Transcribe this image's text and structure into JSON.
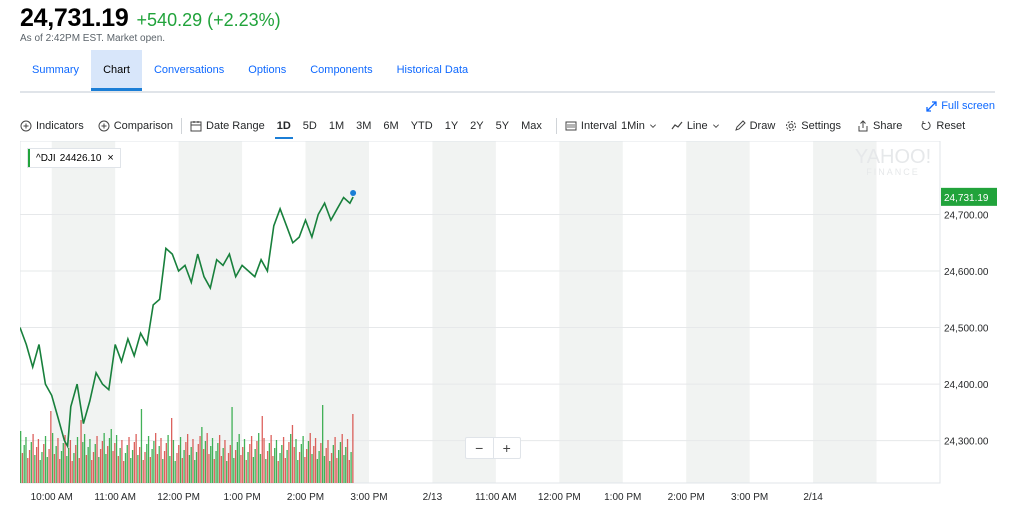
{
  "quote": {
    "price": "24,731.19",
    "change": "+540.29 (+2.23%)",
    "as_of": "As of 2:42PM EST. Market open."
  },
  "tabs": [
    {
      "label": "Summary"
    },
    {
      "label": "Chart"
    },
    {
      "label": "Conversations"
    },
    {
      "label": "Options"
    },
    {
      "label": "Components"
    },
    {
      "label": "Historical Data"
    }
  ],
  "fullscreen_label": "Full screen",
  "toolbar": {
    "indicators": "Indicators",
    "comparison": "Comparison",
    "date_range": "Date Range",
    "ranges": [
      "1D",
      "5D",
      "1M",
      "3M",
      "6M",
      "YTD",
      "1Y",
      "2Y",
      "5Y",
      "Max"
    ],
    "active_range": "1D",
    "interval_label": "Interval",
    "interval_value": "1Min",
    "line_label": "Line",
    "draw": "Draw",
    "settings": "Settings",
    "share": "Share",
    "reset": "Reset"
  },
  "legend": {
    "symbol": "^DJI",
    "value": "24426.10"
  },
  "watermark": {
    "line1": "YAHOO!",
    "line2": "FINANCE"
  },
  "colors": {
    "line": "#18803c",
    "up": "#21a33b",
    "down": "#d64541",
    "accent": "#0f69ff",
    "band": "#f1f3f2"
  },
  "chart_data": {
    "type": "line",
    "title": "",
    "current_price_label": "24,731.19",
    "current_price": 24731.19,
    "y_ticks": [
      24300,
      24400,
      24500,
      24600,
      24700
    ],
    "y_tick_labels": [
      "24,300.00",
      "24,400.00",
      "24,500.00",
      "24,600.00",
      "24,700.00"
    ],
    "ylim": [
      24225,
      24830
    ],
    "x_tick_labels": [
      "10:00 AM",
      "11:00 AM",
      "12:00 PM",
      "1:00 PM",
      "2:00 PM",
      "3:00 PM",
      "2/13",
      "11:00 AM",
      "12:00 PM",
      "1:00 PM",
      "2:00 PM",
      "3:00 PM",
      "2/14"
    ],
    "x_ticks_hours": [
      0.5,
      1.5,
      2.5,
      3.5,
      4.5,
      5.5,
      6.5,
      7.5,
      8.5,
      9.5,
      10.5,
      11.5,
      12.5
    ],
    "xlim_hours": [
      0,
      14.5
    ],
    "series": [
      {
        "x_hours": [
          0.0,
          0.1,
          0.2,
          0.3,
          0.4,
          0.5,
          0.6,
          0.7,
          0.75,
          0.8,
          0.9,
          1.0,
          1.1,
          1.2,
          1.3,
          1.4,
          1.5,
          1.6,
          1.7,
          1.8,
          1.9,
          2.0,
          2.1,
          2.2,
          2.3,
          2.4,
          2.5,
          2.6,
          2.7,
          2.8,
          2.9,
          3.0,
          3.1,
          3.2,
          3.3,
          3.4,
          3.5,
          3.6,
          3.7,
          3.8,
          3.9,
          4.0,
          4.1,
          4.2,
          4.3,
          4.4,
          4.5,
          4.6,
          4.7,
          4.8,
          4.9,
          5.0,
          5.1,
          5.2,
          5.25
        ],
        "values": [
          24500,
          24470,
          24430,
          24470,
          24400,
          24380,
          24340,
          24300,
          24290,
          24360,
          24400,
          24330,
          24370,
          24420,
          24400,
          24390,
          24470,
          24440,
          24480,
          24450,
          24490,
          24470,
          24540,
          24550,
          24640,
          24630,
          24600,
          24610,
          24580,
          24630,
          24590,
          24570,
          24620,
          24610,
          24630,
          24590,
          24610,
          24600,
          24590,
          24620,
          24600,
          24680,
          24710,
          24680,
          24650,
          24660,
          24690,
          24660,
          24700,
          24720,
          24690,
          24710,
          24730,
          24720,
          24731
        ]
      }
    ],
    "volume_color_pattern": [
      "up",
      "down",
      "up",
      "up",
      "down",
      "down",
      "up",
      "down",
      "up",
      "down",
      "down",
      "up"
    ],
    "grid": true
  }
}
